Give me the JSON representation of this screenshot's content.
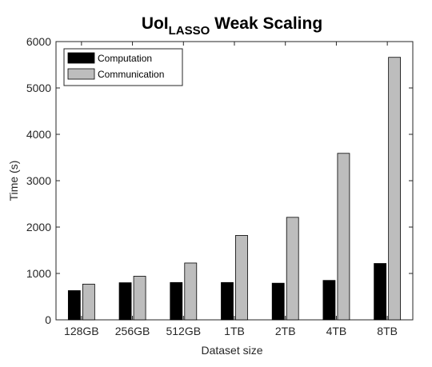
{
  "chart_data": {
    "type": "bar",
    "title": "UoI",
    "title_subscript": "LASSO",
    "title_suffix": " Weak Scaling",
    "xlabel": "Dataset size",
    "ylabel": "Time (s)",
    "categories": [
      "128GB",
      "256GB",
      "512GB",
      "1TB",
      "2TB",
      "4TB",
      "8TB"
    ],
    "series": [
      {
        "name": "Computation",
        "color": "#000000",
        "values": [
          630,
          800,
          805,
          805,
          790,
          850,
          1215
        ]
      },
      {
        "name": "Communication",
        "color": "#bdbdbd",
        "values": [
          770,
          940,
          1225,
          1820,
          2210,
          3590,
          5660
        ]
      }
    ],
    "ylim": [
      0,
      6000
    ],
    "yticks": [
      0,
      1000,
      2000,
      3000,
      4000,
      5000,
      6000
    ],
    "grid": false,
    "legend_position": "top-left"
  }
}
